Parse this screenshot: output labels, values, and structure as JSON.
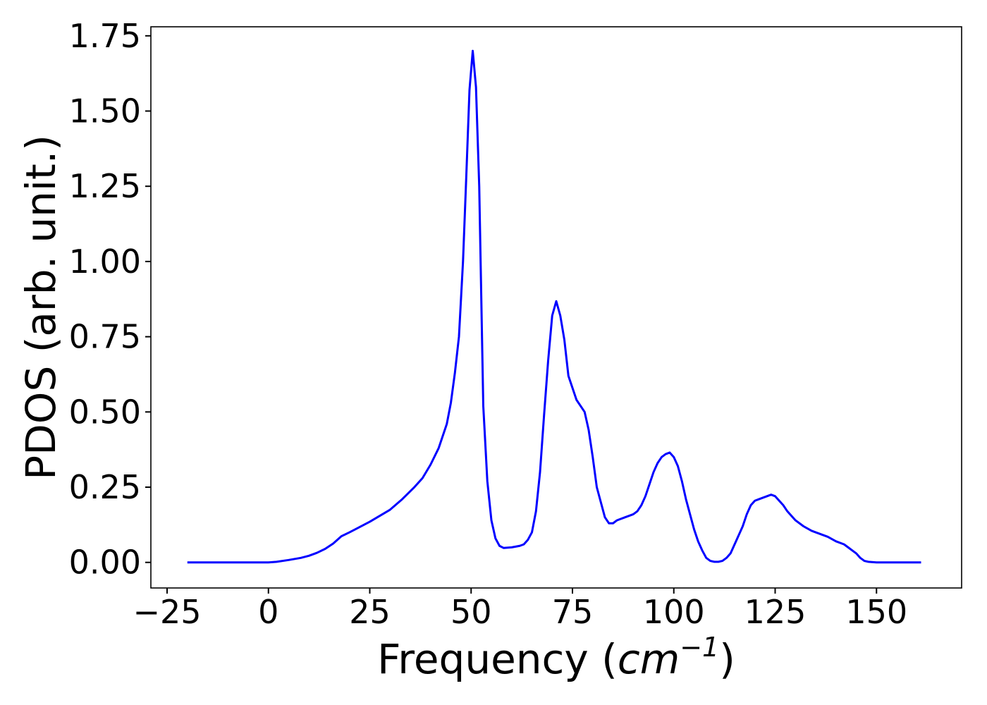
{
  "chart_data": {
    "type": "line",
    "title": "",
    "xlabel_text": "Frequency (",
    "xlabel_unit": "cm",
    "xlabel_exponent": "−1",
    "xlabel_close": ")",
    "ylabel": "PDOS (arb. unit.)",
    "xlim": [
      -29,
      171
    ],
    "ylim": [
      -0.085,
      1.78
    ],
    "xticks": [
      -25,
      0,
      25,
      50,
      75,
      100,
      125,
      150
    ],
    "xtick_labels": [
      "−25",
      "0",
      "25",
      "50",
      "75",
      "100",
      "125",
      "150"
    ],
    "yticks": [
      0.0,
      0.25,
      0.5,
      0.75,
      1.0,
      1.25,
      1.5,
      1.75
    ],
    "ytick_labels": [
      "0.00",
      "0.25",
      "0.50",
      "0.75",
      "1.00",
      "1.25",
      "1.50",
      "1.75"
    ],
    "grid": false,
    "legend": "none",
    "series": [
      {
        "color": "#0000ff",
        "x": [
          -20,
          -10,
          0,
          2,
          5,
          8,
          10,
          12,
          14,
          16,
          18,
          20,
          25,
          30,
          33,
          36,
          38,
          40,
          42,
          44,
          45,
          46,
          47,
          48,
          48.8,
          49.6,
          50.4,
          51.2,
          52,
          53,
          54,
          55,
          56,
          57,
          58,
          60,
          62,
          63,
          64,
          65,
          66,
          67,
          68,
          69,
          70,
          71,
          72,
          73,
          74,
          76,
          78,
          79,
          80,
          81,
          82,
          83,
          84,
          85,
          86,
          88,
          90,
          91,
          92,
          93,
          94,
          95,
          96,
          97,
          98,
          99,
          100,
          101,
          102,
          103,
          104,
          105,
          106,
          107,
          108,
          109,
          110,
          111,
          112,
          113,
          114,
          115,
          116,
          117,
          118,
          119,
          120,
          121,
          122,
          123,
          124,
          125,
          126,
          127,
          128,
          130,
          132,
          134,
          136,
          138,
          140,
          142,
          143,
          144,
          145,
          146,
          147,
          148,
          150,
          155,
          161
        ],
        "y": [
          0.0,
          0.0,
          0.0,
          0.002,
          0.008,
          0.015,
          0.022,
          0.032,
          0.045,
          0.063,
          0.087,
          0.1,
          0.135,
          0.175,
          0.21,
          0.25,
          0.28,
          0.325,
          0.38,
          0.46,
          0.53,
          0.63,
          0.75,
          1.0,
          1.28,
          1.57,
          1.7,
          1.58,
          1.25,
          0.52,
          0.27,
          0.14,
          0.08,
          0.055,
          0.048,
          0.05,
          0.055,
          0.06,
          0.075,
          0.1,
          0.17,
          0.3,
          0.49,
          0.67,
          0.82,
          0.868,
          0.82,
          0.74,
          0.62,
          0.54,
          0.5,
          0.44,
          0.35,
          0.25,
          0.2,
          0.15,
          0.13,
          0.13,
          0.14,
          0.15,
          0.16,
          0.17,
          0.19,
          0.22,
          0.26,
          0.3,
          0.33,
          0.35,
          0.36,
          0.365,
          0.35,
          0.32,
          0.27,
          0.21,
          0.16,
          0.11,
          0.07,
          0.04,
          0.015,
          0.005,
          0.002,
          0.002,
          0.005,
          0.015,
          0.03,
          0.06,
          0.09,
          0.12,
          0.16,
          0.19,
          0.205,
          0.21,
          0.215,
          0.22,
          0.225,
          0.22,
          0.205,
          0.19,
          0.17,
          0.14,
          0.12,
          0.105,
          0.095,
          0.085,
          0.07,
          0.06,
          0.05,
          0.04,
          0.03,
          0.015,
          0.005,
          0.002,
          0.0,
          0.0,
          0.0
        ]
      }
    ]
  }
}
